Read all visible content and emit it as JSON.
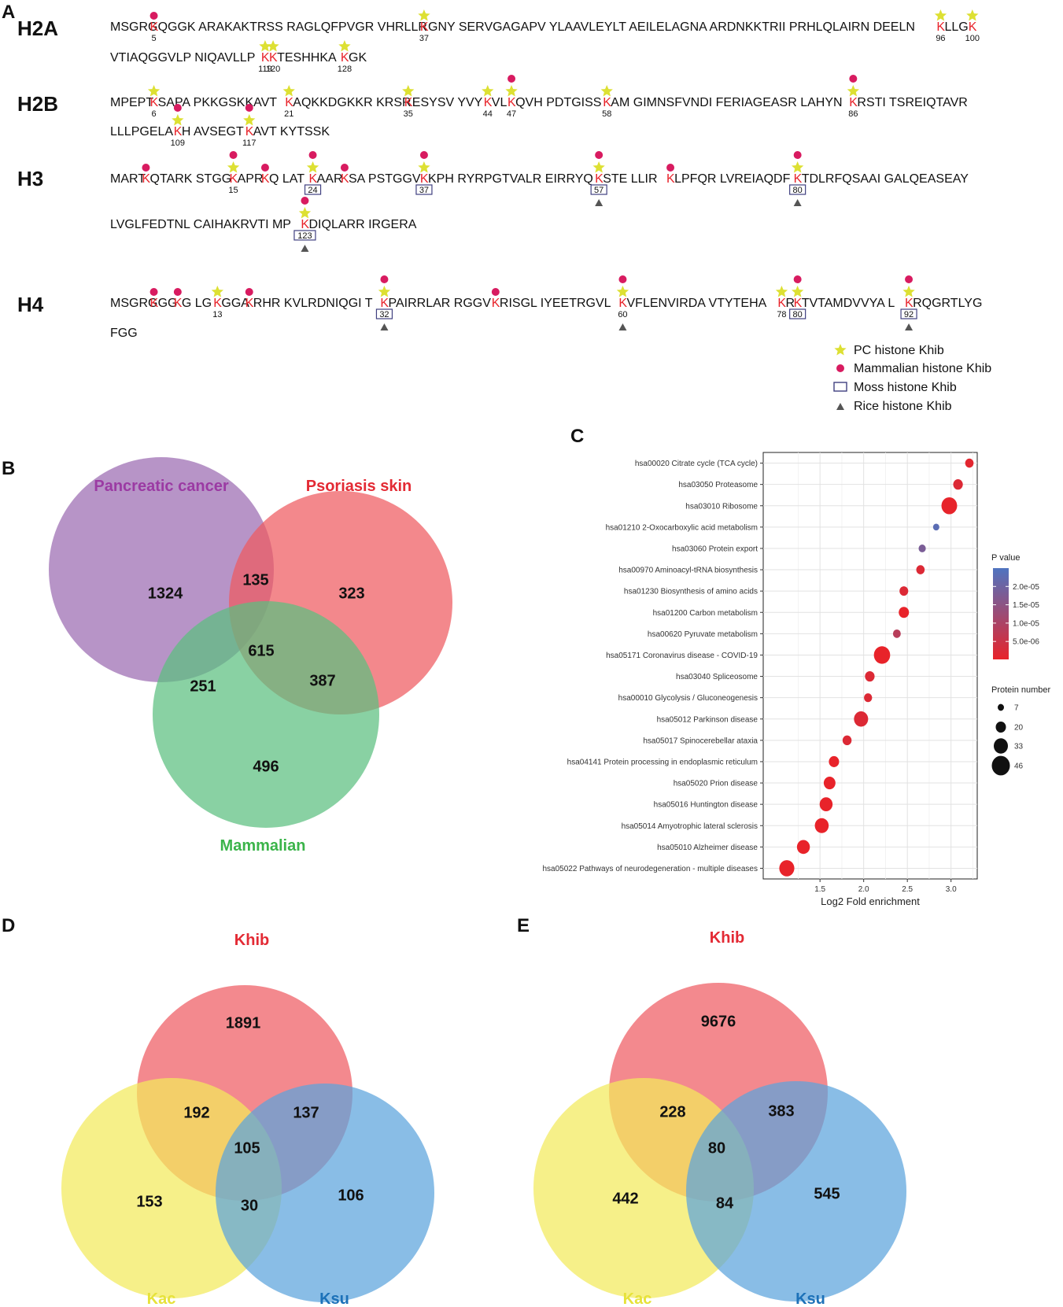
{
  "panels": {
    "a": "A",
    "b": "B",
    "c": "C",
    "d": "D",
    "e": "E"
  },
  "panel_a": {
    "rows": [
      {
        "histone": "H2A",
        "lines": [
          {
            "segs": [
              {
                "t": "MSGRG"
              },
              {
                "k": "K",
                "m": {
                  "dot": true,
                  "num": "5"
                }
              },
              {
                "t": "QGGK ARAKAKTRSS RAGLQFPVGR VHRLLR"
              },
              {
                "k": "K",
                "m": {
                  "star": true,
                  "num": "37"
                }
              },
              {
                "t": "GNY SERVGAGAPV YLAAVLEYLT AEILELAGNA ARDNKKTRII PRHLQLAIRN DEELN"
              },
              {
                "k": "K",
                "m": {
                  "star": true,
                  "num": "96"
                }
              },
              {
                "t": "LLG"
              },
              {
                "k": "K",
                "m": {
                  "star": true,
                  "num": "100"
                }
              }
            ]
          },
          {
            "segs": [
              {
                "t": "VTIAQGGVLP NIQAVLLP"
              },
              {
                "k": "K",
                "m": {
                  "star": true,
                  "num": "119"
                }
              },
              {
                "k": "K",
                "m": {
                  "star": true,
                  "num": "120"
                }
              },
              {
                "t": " TESHHKA"
              },
              {
                "k": "K",
                "m": {
                  "star": true,
                  "num": "128"
                }
              },
              {
                "t": "GK"
              }
            ]
          }
        ]
      },
      {
        "histone": "H2B",
        "lines": [
          {
            "segs": [
              {
                "t": "MPEPT"
              },
              {
                "k": "K",
                "m": {
                  "star": true,
                  "num": "6"
                }
              },
              {
                "t": "SAPA PKKGSKKAVT "
              },
              {
                "k": "K",
                "m": {
                  "star": true,
                  "num": "21"
                }
              },
              {
                "t": "AQKKDGKKR KRSR"
              },
              {
                "k": "K",
                "m": {
                  "star": true,
                  "num": "35"
                }
              },
              {
                "t": "ESYSV YVY"
              },
              {
                "k": "K",
                "m": {
                  "star": true,
                  "num": "44"
                }
              },
              {
                "t": "VL"
              },
              {
                "k": "K",
                "m": {
                  "dot": true,
                  "star": true,
                  "num": "47"
                }
              },
              {
                "t": "QVH PDTGISS"
              },
              {
                "k": "K",
                "m": {
                  "star": true,
                  "num": "58"
                }
              },
              {
                "t": "AM GIMNSFVNDI FERIAGEASR LAHYN"
              },
              {
                "k": "K",
                "m": {
                  "dot": true,
                  "star": true,
                  "num": "86"
                }
              },
              {
                "t": "RSTI TSREIQTAVR"
              }
            ]
          },
          {
            "segs": [
              {
                "t": "LLLPGELA"
              },
              {
                "k": "K",
                "m": {
                  "dot": true,
                  "star": true,
                  "num": "109"
                }
              },
              {
                "t": "H AVSEGT"
              },
              {
                "k": "K",
                "m": {
                  "dot": true,
                  "star": true,
                  "num": "117"
                }
              },
              {
                "t": "AVT KYTSSK"
              }
            ]
          }
        ]
      },
      {
        "histone": "H3",
        "lines": [
          {
            "segs": [
              {
                "t": "MART"
              },
              {
                "k": "K",
                "m": {
                  "dot": true
                }
              },
              {
                "t": "QTARK STGG"
              },
              {
                "k": "K",
                "m": {
                  "dot": true,
                  "star": true,
                  "num": "15"
                }
              },
              {
                "t": "APR"
              },
              {
                "k": "K",
                "m": {
                  "dot": true
                }
              },
              {
                "t": "Q LAT"
              },
              {
                "k": "K",
                "m": {
                  "dot": true,
                  "star": true,
                  "box": "24"
                }
              },
              {
                "t": "AAR"
              },
              {
                "k": "K",
                "m": {
                  "dot": true
                }
              },
              {
                "t": "SA PSTGGV"
              },
              {
                "k": "K",
                "m": {
                  "dot": true,
                  "star": true,
                  "box": "37"
                }
              },
              {
                "t": "KPH RYRPGTVALR EIRRYQ"
              },
              {
                "k": "K",
                "m": {
                  "dot": true,
                  "star": true,
                  "box": "57",
                  "tri": true
                }
              },
              {
                "t": "STE LLIR"
              },
              {
                "k": "K",
                "m": {
                  "dot": true
                }
              },
              {
                "t": "LPFQR LVREIAQDF"
              },
              {
                "k": "K",
                "m": {
                  "dot": true,
                  "star": true,
                  "box": "80",
                  "tri": true
                }
              },
              {
                "t": " TDLRFQSAAI GALQEASEAY"
              }
            ]
          },
          {
            "segs": [
              {
                "t": "LVGLFEDTNL CAIHAKRVTI MP"
              },
              {
                "k": "K",
                "m": {
                  "dot": true,
                  "star": true,
                  "box": "123",
                  "tri": true
                }
              },
              {
                "t": "DIQLARR IRGERA"
              }
            ]
          }
        ]
      },
      {
        "histone": "H4",
        "lines": [
          {
            "segs": [
              {
                "t": "MSGRG"
              },
              {
                "k": "K",
                "m": {
                  "dot": true
                }
              },
              {
                "t": "GG"
              },
              {
                "k": "K",
                "m": {
                  "dot": true
                }
              },
              {
                "t": "G LG"
              },
              {
                "k": "K",
                "m": {
                  "star": true,
                  "num": "13"
                }
              },
              {
                "t": "GGA"
              },
              {
                "k": "K",
                "m": {
                  "dot": true
                }
              },
              {
                "t": "RHR KVLRDNIQGI T"
              },
              {
                "k": "K",
                "m": {
                  "dot": true,
                  "star": true,
                  "box": "32",
                  "tri": true
                }
              },
              {
                "t": "PAIRRLAR RGGV"
              },
              {
                "k": "K",
                "m": {
                  "dot": true
                }
              },
              {
                "t": "RISGL IYEETRGVL"
              },
              {
                "k": "K",
                "m": {
                  "dot": true,
                  "star": true,
                  "num": "60",
                  "tri": true
                }
              },
              {
                "t": " VFLENVIRDA VTYTEHA"
              },
              {
                "k": "K",
                "m": {
                  "star": true,
                  "num": "78"
                }
              },
              {
                "t": "R"
              },
              {
                "k": "K",
                "m": {
                  "dot": true,
                  "star": true,
                  "box": "80"
                }
              },
              {
                "t": " TVTAMDVVYA L"
              },
              {
                "k": "K",
                "m": {
                  "dot": true,
                  "star": true,
                  "box": "92",
                  "tri": true
                }
              },
              {
                "t": "RQGRTLYG"
              }
            ]
          },
          {
            "segs": [
              {
                "t": "FGG"
              }
            ]
          }
        ]
      }
    ],
    "legend": [
      {
        "symbol": "star",
        "label": "PC histone Khib"
      },
      {
        "symbol": "dot",
        "label": "Mammalian histone Khib"
      },
      {
        "symbol": "box",
        "label": "Moss histone Khib"
      },
      {
        "symbol": "tri",
        "label": "Rice histone Khib"
      }
    ]
  },
  "colors": {
    "star": "#dde033",
    "dot": "#d81b60",
    "box": "#404080",
    "tri": "#555555",
    "lys": "#e8232a"
  },
  "venn_b": {
    "labels": [
      "Pancreatic cancer",
      "Psoriasis skin",
      "Mammalian"
    ],
    "label_colors": [
      "#9b3aa3",
      "#e32a34",
      "#3bb44a"
    ],
    "fills": [
      "#9b6bb2",
      "#ee5a5f",
      "#5cbf80"
    ],
    "counts": {
      "a": "1324",
      "b": "323",
      "c": "496",
      "ab": "135",
      "ac": "251",
      "bc": "387",
      "abc": "615"
    }
  },
  "venn_d": {
    "labels": [
      "Khib",
      "Kac",
      "Ksu"
    ],
    "label_colors": [
      "#e32a34",
      "#e6e23a",
      "#1c71b8"
    ],
    "fills": [
      "#ef5b62",
      "#f2ea5c",
      "#5ca4dc"
    ],
    "counts": {
      "a": "1891",
      "b": "153",
      "c": "106",
      "ab": "192",
      "ac": "137",
      "bc": "30",
      "abc": "105"
    }
  },
  "venn_e": {
    "labels": [
      "Khib",
      "Kac",
      "Ksu"
    ],
    "label_colors": [
      "#e32a34",
      "#e6e23a",
      "#1c71b8"
    ],
    "fills": [
      "#ef5b62",
      "#f2ea5c",
      "#5ca4dc"
    ],
    "counts": {
      "a": "9676",
      "b": "442",
      "c": "545",
      "ab": "228",
      "ac": "383",
      "bc": "84",
      "abc": "80"
    }
  },
  "chart_data": {
    "type": "scatter",
    "title": "",
    "xlabel": "Log2 Fold enrichment",
    "ylabel": "",
    "xlim": [
      0.85,
      3.3
    ],
    "xticks": [
      1.5,
      2.0,
      2.5,
      3.0
    ],
    "categories": [
      "hsa00020 Citrate cycle (TCA cycle)",
      "hsa03050 Proteasome",
      "hsa03010 Ribosome",
      "hsa01210 2-Oxocarboxylic acid metabolism",
      "hsa03060 Protein export",
      "hsa00970 Aminoacyl-tRNA biosynthesis",
      "hsa01230 Biosynthesis of amino acids",
      "hsa01200 Carbon metabolism",
      "hsa00620 Pyruvate metabolism",
      "hsa05171 Coronavirus disease - COVID-19",
      "hsa03040 Spliceosome",
      "hsa00010 Glycolysis / Gluconeogenesis",
      "hsa05012 Parkinson disease",
      "hsa05017 Spinocerebellar ataxia",
      "hsa04141 Protein processing in endoplasmic reticulum",
      "hsa05020 Prion disease",
      "hsa05016 Huntington disease",
      "hsa05014 Amyotrophic lateral sclerosis",
      "hsa05010 Alzheimer disease",
      "hsa05022 Pathways of neurodegeneration - multiple diseases"
    ],
    "x": [
      3.21,
      3.08,
      2.98,
      2.83,
      2.67,
      2.65,
      2.46,
      2.46,
      2.38,
      2.21,
      2.07,
      2.05,
      1.97,
      1.81,
      1.66,
      1.61,
      1.57,
      1.52,
      1.31,
      1.12
    ],
    "protein_number": [
      14,
      18,
      38,
      7,
      10,
      14,
      15,
      20,
      12,
      40,
      18,
      13,
      33,
      16,
      20,
      25,
      29,
      32,
      29,
      36
    ],
    "p_value": [
      1e-06,
      2e-06,
      3e-07,
      2.3e-05,
      1.8e-05,
      2e-06,
      2e-06,
      1e-07,
      8e-06,
      1e-07,
      2e-06,
      2e-06,
      2e-06,
      2e-06,
      1e-07,
      1e-07,
      1e-07,
      1e-07,
      1e-07,
      1e-07
    ],
    "legend_p": {
      "title": "P value",
      "ticks": [
        "2.0e-05",
        "1.5e-05",
        "1.0e-05",
        "5.0e-06"
      ],
      "tick_values": [
        2e-05,
        1.5e-05,
        1e-05,
        5e-06
      ],
      "range": [
        1e-07,
        2.5e-05
      ],
      "colors": [
        "#e8232a",
        "#4f74c0"
      ]
    },
    "legend_size": {
      "title": "Protein number",
      "values": [
        7,
        20,
        33,
        46
      ],
      "labels": [
        "7",
        "20",
        "33",
        "46"
      ]
    }
  }
}
